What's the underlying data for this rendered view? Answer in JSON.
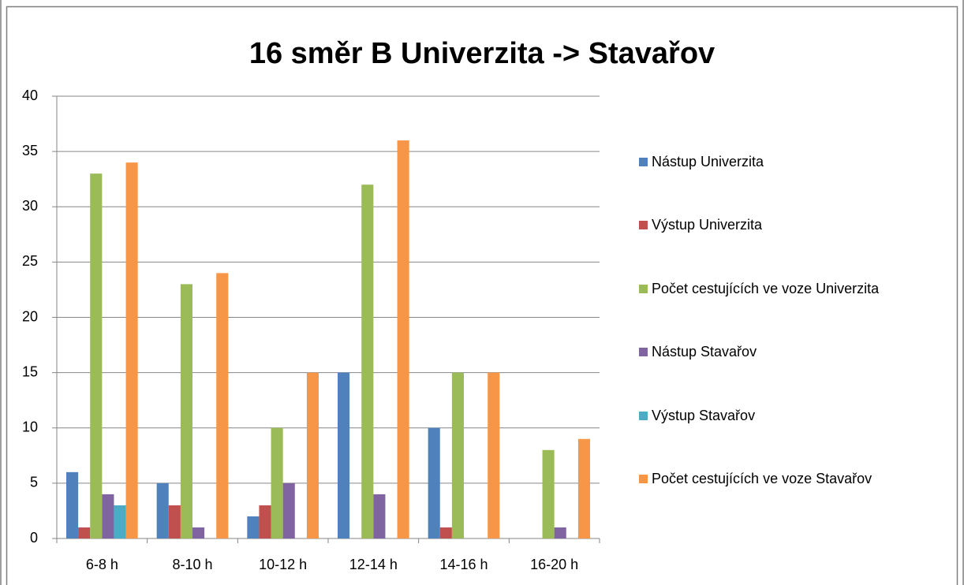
{
  "chart_data": {
    "type": "bar",
    "title": "16 směr B Univerzita -> Stavařov",
    "categories": [
      "6-8 h",
      "8-10 h",
      "10-12 h",
      "12-14 h",
      "14-16 h",
      "16-20 h"
    ],
    "series": [
      {
        "name": "Nástup Univerzita",
        "color": "#4f81bd",
        "values": [
          6,
          5,
          2,
          15,
          10,
          0
        ]
      },
      {
        "name": "Výstup Univerzita",
        "color": "#c0504d",
        "values": [
          1,
          3,
          3,
          0,
          1,
          0
        ]
      },
      {
        "name": "Počet cestujících ve voze Univerzita",
        "color": "#9bbb59",
        "values": [
          33,
          23,
          10,
          32,
          15,
          8
        ]
      },
      {
        "name": "Nástup Stavařov",
        "color": "#8064a2",
        "values": [
          4,
          1,
          5,
          4,
          0,
          1
        ]
      },
      {
        "name": "Výstup Stavařov",
        "color": "#4bacc6",
        "values": [
          3,
          0,
          0,
          0,
          0,
          0
        ]
      },
      {
        "name": "Počet cestujících ve voze Stavařov",
        "color": "#f79646",
        "values": [
          34,
          24,
          15,
          36,
          15,
          9
        ]
      }
    ],
    "ylim": [
      0,
      40
    ],
    "yticks": [
      0,
      5,
      10,
      15,
      20,
      25,
      30,
      35,
      40
    ],
    "grid": true,
    "legend": "right"
  }
}
